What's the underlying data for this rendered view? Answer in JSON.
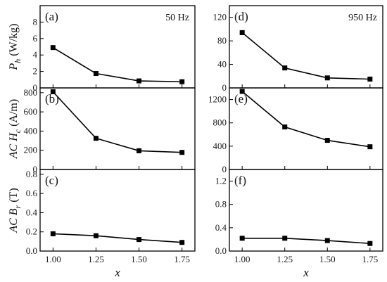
{
  "chart_data": [
    {
      "type": "line",
      "panel": "(a)",
      "freq_label": "50 Hz",
      "ylabel": {
        "main": "P",
        "sub": "h",
        "unit": " (W/kg)"
      },
      "x": [
        1.0,
        1.25,
        1.5,
        1.75
      ],
      "y": [
        4.9,
        1.75,
        0.85,
        0.75
      ],
      "ylim": [
        0,
        10
      ],
      "yticks": [
        "0",
        "2",
        "4",
        "6",
        "8"
      ],
      "xticks": [
        "1.00",
        "1.25",
        "1.50",
        "1.75"
      ]
    },
    {
      "type": "line",
      "panel": "(b)",
      "ylabel": {
        "prefix": "AC ",
        "main": "H",
        "sub": "c",
        "unit": " (A/m)"
      },
      "x": [
        1.0,
        1.25,
        1.5,
        1.75
      ],
      "y": [
        810,
        325,
        195,
        178
      ],
      "ylim": [
        0,
        850
      ],
      "yticks": [
        "0",
        "200",
        "400",
        "600",
        "800"
      ],
      "xticks": [
        "1.00",
        "1.25",
        "1.50",
        "1.75"
      ]
    },
    {
      "type": "line",
      "panel": "(c)",
      "ylabel": {
        "prefix": "AC ",
        "main": "B",
        "sub": "r",
        "unit": " (T)"
      },
      "x": [
        1.0,
        1.25,
        1.5,
        1.75
      ],
      "y": [
        0.18,
        0.16,
        0.12,
        0.09
      ],
      "ylim": [
        0,
        0.85
      ],
      "yticks": [
        "0.0",
        "0.2",
        "0.4",
        "0.6",
        "0.8"
      ],
      "xticks": [
        "1.00",
        "1.25",
        "1.50",
        "1.75"
      ],
      "xlabel": "x"
    },
    {
      "type": "line",
      "panel": "(d)",
      "freq_label": "950 Hz",
      "x": [
        1.0,
        1.25,
        1.5,
        1.75
      ],
      "y": [
        94,
        34,
        17,
        15
      ],
      "ylim": [
        0,
        140
      ],
      "yticks": [
        "0",
        "40",
        "80",
        "120"
      ],
      "xticks": [
        "1.00",
        "1.25",
        "1.50",
        "1.75"
      ]
    },
    {
      "type": "line",
      "panel": "(e)",
      "x": [
        1.0,
        1.25,
        1.5,
        1.75
      ],
      "y": [
        1340,
        730,
        500,
        390
      ],
      "ylim": [
        0,
        1400
      ],
      "yticks": [
        "0",
        "400",
        "800",
        "1200"
      ],
      "xticks": [
        "1.00",
        "1.25",
        "1.50",
        "1.75"
      ]
    },
    {
      "type": "line",
      "panel": "(f)",
      "x": [
        1.0,
        1.25,
        1.5,
        1.75
      ],
      "y": [
        0.22,
        0.22,
        0.18,
        0.13
      ],
      "ylim": [
        0,
        1.4
      ],
      "yticks": [
        "0.0",
        "0.4",
        "0.8",
        "1.2"
      ],
      "xticks": [
        "1.00",
        "1.25",
        "1.50",
        "1.75"
      ],
      "xlabel": "x"
    }
  ]
}
